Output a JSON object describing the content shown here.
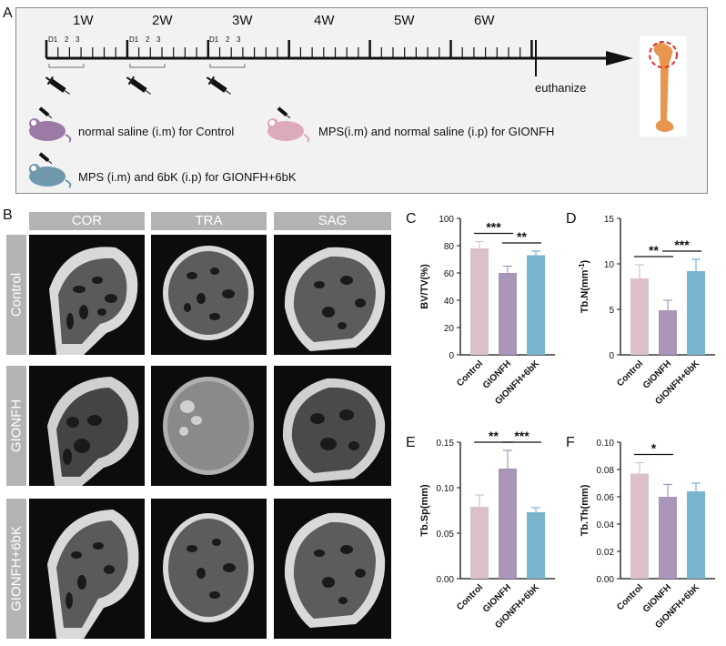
{
  "panels": {
    "A": "A",
    "B": "B",
    "C": "C",
    "D": "D",
    "E": "E",
    "F": "F"
  },
  "timeline": {
    "weeks": [
      "1W",
      "2W",
      "3W",
      "4W",
      "5W",
      "6W"
    ],
    "day_labels": [
      "D1",
      "2",
      "3"
    ],
    "endpoint": "euthanize"
  },
  "legend": {
    "control": "normal saline (i.m) for Control",
    "gionfh": "MPS(i.m) and normal saline (i.p) for GIONFH",
    "gionfh6bk": "MPS (i.m) and 6bK (i.p) for GIONFH+6bK"
  },
  "ct": {
    "views": [
      "COR",
      "TRA",
      "SAG"
    ],
    "groups": [
      "Control",
      "GIONFH",
      "GIONFH+6bK"
    ]
  },
  "colors": {
    "control": "#dcc1cc",
    "gionfh": "#a995b8",
    "gionfh6bk": "#79b4cf",
    "timeline": "#111111",
    "bone": "#e58a3c"
  },
  "chart_data": [
    {
      "panel": "C",
      "type": "bar",
      "categories": [
        "Control",
        "GIONFH",
        "GIONFH+6bK"
      ],
      "values": [
        78,
        60,
        73
      ],
      "errors": [
        5,
        5,
        3
      ],
      "ylabel": "BV/TV(%)",
      "ylim": [
        0,
        100
      ],
      "yticks": [
        "0",
        "20",
        "40",
        "60",
        "80",
        "100"
      ],
      "significance": [
        {
          "pair": [
            0,
            1
          ],
          "label": "***"
        },
        {
          "pair": [
            1,
            2
          ],
          "label": "**"
        }
      ]
    },
    {
      "panel": "D",
      "type": "bar",
      "categories": [
        "Control",
        "GIONFH",
        "GIONFH+6bK"
      ],
      "values": [
        8.4,
        4.9,
        9.2
      ],
      "errors": [
        1.5,
        1.1,
        1.3
      ],
      "ylabel": "Tb.N(mm",
      "ylabel_sup": "-1",
      "ylabel_end": ")",
      "ylim": [
        0,
        15
      ],
      "yticks": [
        "0",
        "5",
        "10",
        "15"
      ],
      "significance": [
        {
          "pair": [
            0,
            1
          ],
          "label": "**"
        },
        {
          "pair": [
            1,
            2
          ],
          "label": "***"
        }
      ]
    },
    {
      "panel": "E",
      "type": "bar",
      "categories": [
        "Control",
        "GIONFH",
        "GIONFH+6bK"
      ],
      "values": [
        0.079,
        0.121,
        0.073
      ],
      "errors": [
        0.013,
        0.02,
        0.005
      ],
      "ylabel": "Tb.Sp(mm)",
      "ylim": [
        0,
        0.15
      ],
      "yticks": [
        "0.00",
        "0.05",
        "0.10",
        "0.15"
      ],
      "significance": [
        {
          "pair": [
            0,
            1
          ],
          "label": "**"
        },
        {
          "pair": [
            1,
            2
          ],
          "label": "***"
        }
      ]
    },
    {
      "panel": "F",
      "type": "bar",
      "categories": [
        "Control",
        "GIONFH",
        "GIONFH+6bK"
      ],
      "values": [
        0.077,
        0.06,
        0.064
      ],
      "errors": [
        0.008,
        0.009,
        0.006
      ],
      "ylabel": "Tb.Th(mm)",
      "ylim": [
        0,
        0.1
      ],
      "yticks": [
        "0.00",
        "0.02",
        "0.04",
        "0.06",
        "0.08",
        "0.10"
      ],
      "significance": [
        {
          "pair": [
            0,
            1
          ],
          "label": "*"
        }
      ]
    }
  ]
}
